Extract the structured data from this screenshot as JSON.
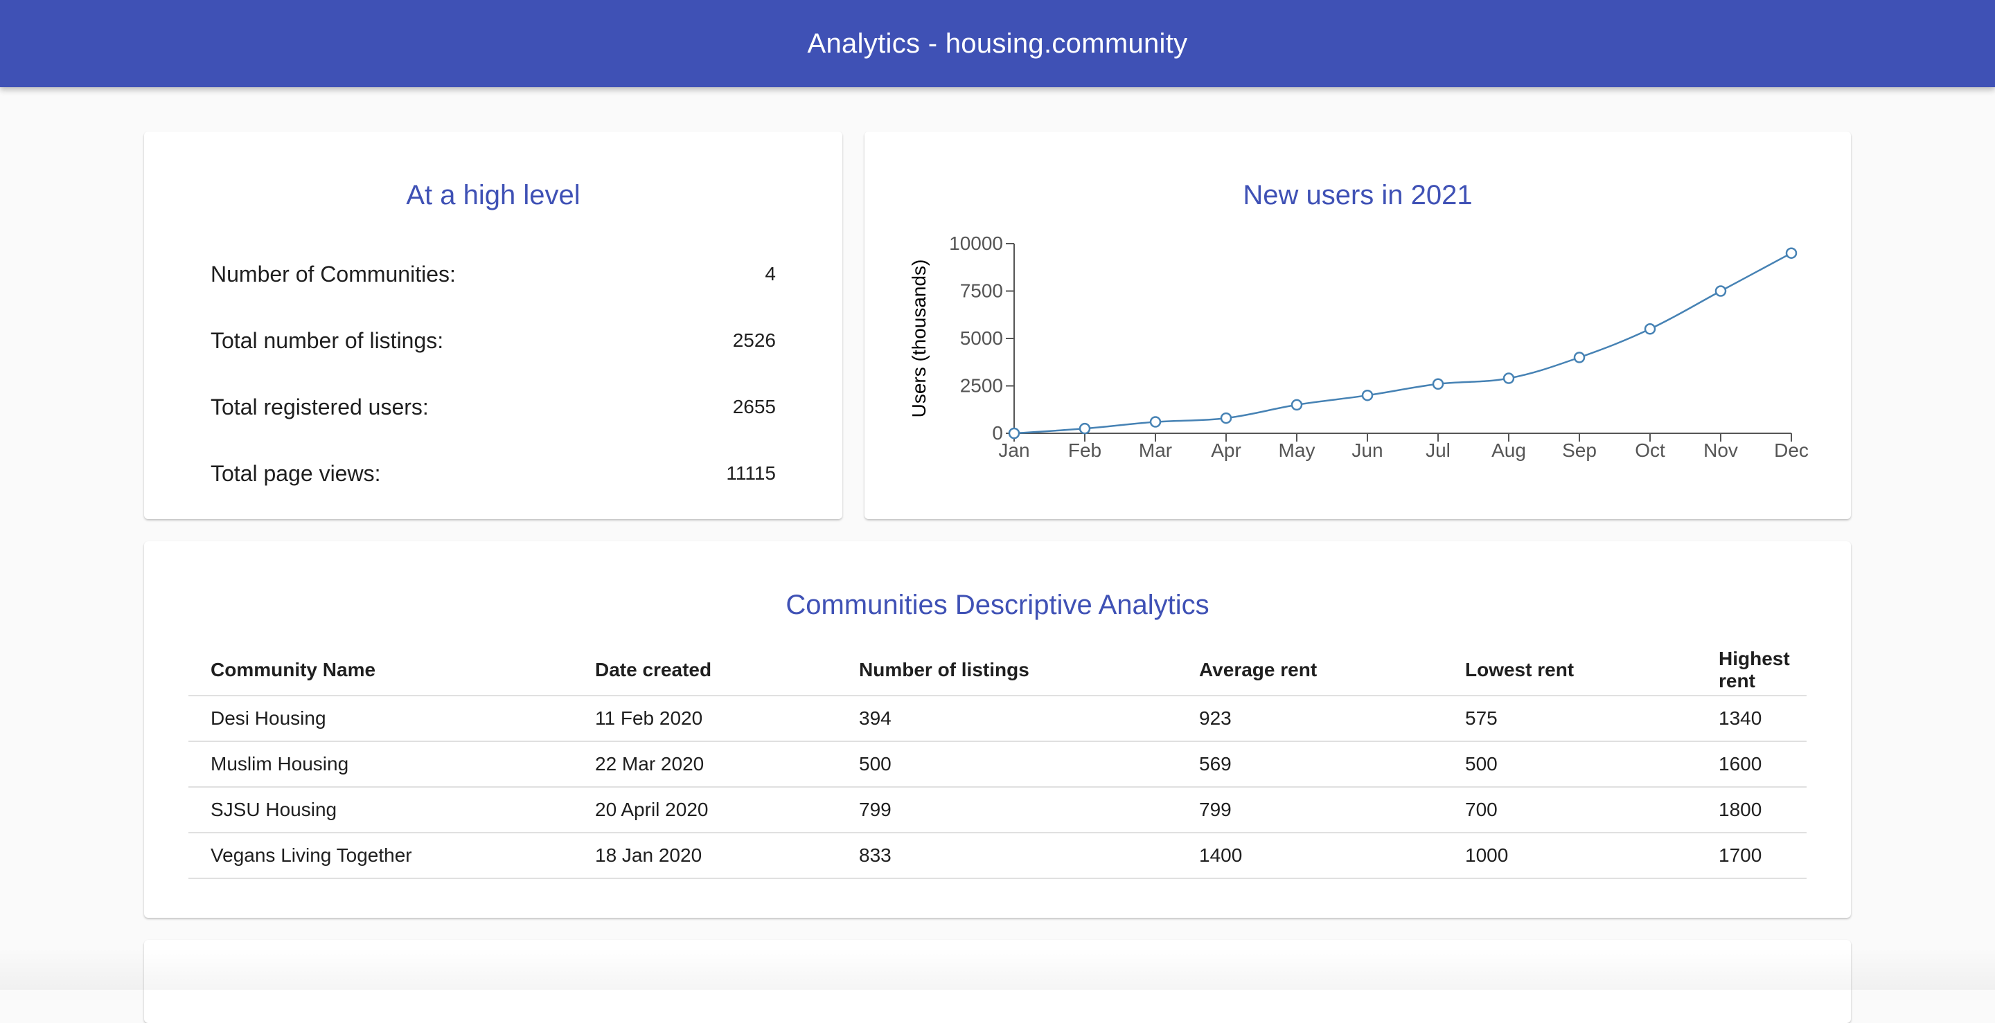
{
  "app": {
    "title": "Analytics - housing.community"
  },
  "summary": {
    "title": "At a high level",
    "stats": [
      {
        "label": "Number of Communities:",
        "value": "4"
      },
      {
        "label": "Total number of listings:",
        "value": "2526"
      },
      {
        "label": "Total registered users:",
        "value": "2655"
      },
      {
        "label": "Total page views:",
        "value": "11115"
      }
    ]
  },
  "chart_card": {
    "title": "New users in 2021"
  },
  "chart_data": {
    "type": "line",
    "title": "New users in 2021",
    "xlabel": "",
    "ylabel": "Users (thousands)",
    "categories": [
      "Jan",
      "Feb",
      "Mar",
      "Apr",
      "May",
      "Jun",
      "Jul",
      "Aug",
      "Sep",
      "Oct",
      "Nov",
      "Dec"
    ],
    "values": [
      0,
      250,
      600,
      800,
      1500,
      2000,
      2600,
      2900,
      4000,
      5500,
      7500,
      9500
    ],
    "yticks": [
      0,
      2500,
      5000,
      7500,
      10000
    ],
    "ylim": [
      0,
      10000
    ],
    "grid": false,
    "color": "#4682b4"
  },
  "table_card": {
    "title": "Communities Descriptive Analytics",
    "columns": [
      "Community Name",
      "Date created",
      "Number of listings",
      "Average rent",
      "Lowest rent",
      "Highest rent"
    ],
    "rows": [
      [
        "Desi Housing",
        "11 Feb 2020",
        "394",
        "923",
        "575",
        "1340"
      ],
      [
        "Muslim Housing",
        "22 Mar 2020",
        "500",
        "569",
        "500",
        "1600"
      ],
      [
        "SJSU Housing",
        "20 April 2020",
        "799",
        "799",
        "700",
        "1800"
      ],
      [
        "Vegans Living Together",
        "18 Jan 2020",
        "833",
        "1400",
        "1000",
        "1700"
      ]
    ]
  },
  "colors": {
    "primary": "#3f51b5",
    "background": "#fafafa",
    "line": "#4682b4"
  }
}
